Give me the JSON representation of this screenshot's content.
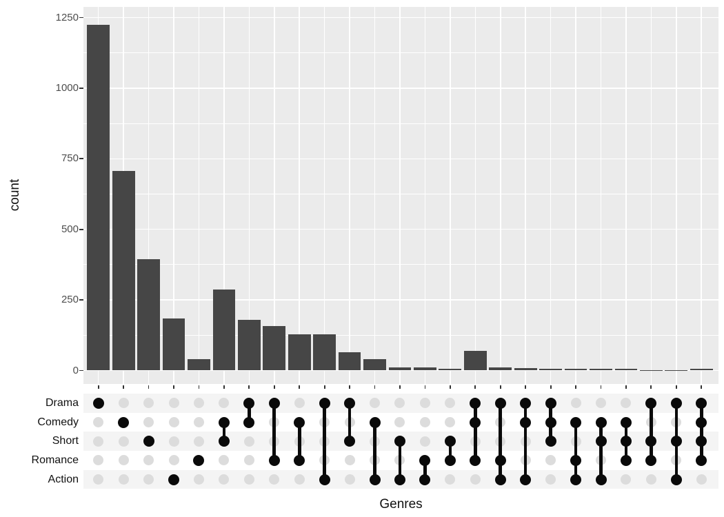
{
  "chart_data": {
    "type": "bar",
    "variant": "upset",
    "title": "",
    "xlabel": "Genres",
    "ylabel": "count",
    "ylim": [
      0,
      1250
    ],
    "yticks": [
      0,
      250,
      500,
      750,
      1000,
      1250
    ],
    "grid": "white major and minor horizontal lines plus vertical category lines on grey panel",
    "legend": "none",
    "sets": [
      "Drama",
      "Comedy",
      "Short",
      "Romance",
      "Action"
    ],
    "intersections": [
      {
        "sets": [
          "Drama"
        ],
        "count": 1225
      },
      {
        "sets": [
          "Comedy"
        ],
        "count": 708
      },
      {
        "sets": [
          "Short"
        ],
        "count": 394
      },
      {
        "sets": [
          "Action"
        ],
        "count": 185
      },
      {
        "sets": [
          "Romance"
        ],
        "count": 41
      },
      {
        "sets": [
          "Comedy",
          "Short"
        ],
        "count": 288
      },
      {
        "sets": [
          "Drama",
          "Comedy"
        ],
        "count": 179
      },
      {
        "sets": [
          "Drama",
          "Romance"
        ],
        "count": 157
      },
      {
        "sets": [
          "Comedy",
          "Romance"
        ],
        "count": 128
      },
      {
        "sets": [
          "Drama",
          "Action"
        ],
        "count": 127
      },
      {
        "sets": [
          "Drama",
          "Short"
        ],
        "count": 65
      },
      {
        "sets": [
          "Comedy",
          "Action"
        ],
        "count": 40
      },
      {
        "sets": [
          "Short",
          "Action"
        ],
        "count": 12
      },
      {
        "sets": [
          "Romance",
          "Action"
        ],
        "count": 10
      },
      {
        "sets": [
          "Short",
          "Romance"
        ],
        "count": 5
      },
      {
        "sets": [
          "Drama",
          "Comedy",
          "Romance"
        ],
        "count": 69
      },
      {
        "sets": [
          "Drama",
          "Romance",
          "Action"
        ],
        "count": 11
      },
      {
        "sets": [
          "Drama",
          "Comedy",
          "Action"
        ],
        "count": 9
      },
      {
        "sets": [
          "Drama",
          "Comedy",
          "Short"
        ],
        "count": 7
      },
      {
        "sets": [
          "Comedy",
          "Romance",
          "Action"
        ],
        "count": 7
      },
      {
        "sets": [
          "Comedy",
          "Short",
          "Action"
        ],
        "count": 6
      },
      {
        "sets": [
          "Comedy",
          "Short",
          "Romance"
        ],
        "count": 5
      },
      {
        "sets": [
          "Drama",
          "Short",
          "Romance"
        ],
        "count": 2
      },
      {
        "sets": [
          "Drama",
          "Short",
          "Action"
        ],
        "count": 2
      },
      {
        "sets": [
          "Drama",
          "Comedy",
          "Short",
          "Romance"
        ],
        "count": 5
      }
    ]
  },
  "colors": {
    "bar_fill": "#464646",
    "panel_background": "#EBEBEB",
    "grid_line": "#FFFFFF",
    "stripe": "#F4F4F4",
    "dot_empty": "#DCDCDC",
    "dot_filled": "#0A0A0A",
    "axis_text": "#4D4D4D",
    "label_text": "#111111",
    "tick_mark": "#333333"
  }
}
